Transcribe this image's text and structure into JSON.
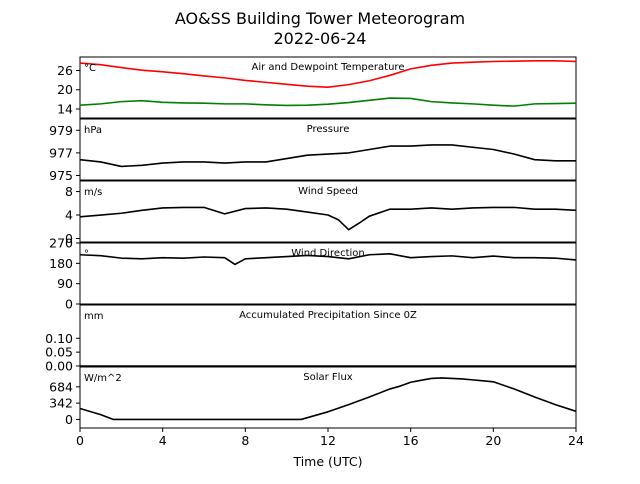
{
  "title": "AO&SS Building Tower Meteorogram",
  "subtitle": "2022-06-24",
  "chart_data": [
    {
      "type": "line",
      "title": "Air and Dewpoint Temperature",
      "ylabel": "°C",
      "yticks": [
        "14",
        "20",
        "26"
      ],
      "ytick_values": [
        14,
        20,
        26
      ],
      "ylim": [
        11.2,
        30.2
      ],
      "series": [
        {
          "color": "#ff0000",
          "x": [
            0,
            1,
            2,
            3,
            4,
            5,
            6,
            7,
            8,
            9,
            10,
            11,
            12,
            13,
            14,
            15,
            16,
            17,
            18,
            19,
            20,
            21,
            22,
            23,
            24
          ],
          "values": [
            28.3,
            27.8,
            26.9,
            26.1,
            25.6,
            25.0,
            24.3,
            23.7,
            22.9,
            22.3,
            21.7,
            21.1,
            20.8,
            21.6,
            22.8,
            24.5,
            26.5,
            27.6,
            28.3,
            28.6,
            28.8,
            28.9,
            29.0,
            29.0,
            28.8
          ]
        },
        {
          "color": "#008000",
          "x": [
            0,
            1,
            2,
            3,
            4,
            5,
            6,
            7,
            8,
            9,
            10,
            11,
            12,
            13,
            14,
            15,
            16,
            17,
            18,
            19,
            20,
            21,
            22,
            23,
            24
          ],
          "values": [
            15.2,
            15.6,
            16.3,
            16.6,
            16.1,
            15.9,
            15.8,
            15.6,
            15.6,
            15.3,
            15.1,
            15.2,
            15.5,
            16.0,
            16.7,
            17.4,
            17.3,
            16.3,
            15.9,
            15.6,
            15.2,
            14.9,
            15.6,
            15.7,
            15.8
          ]
        }
      ]
    },
    {
      "type": "line",
      "title": "Pressure",
      "ylabel": "hPa",
      "yticks": [
        "975",
        "977",
        "979"
      ],
      "ytick_values": [
        975,
        977,
        979
      ],
      "ylim": [
        974.6,
        980.0
      ],
      "series": [
        {
          "color": "#000000",
          "x": [
            0,
            1,
            2,
            3,
            4,
            5,
            6,
            7,
            8,
            9,
            10,
            11,
            12,
            13,
            14,
            15,
            16,
            17,
            18,
            19,
            20,
            21,
            22,
            23,
            24
          ],
          "values": [
            976.4,
            976.2,
            975.8,
            975.9,
            976.1,
            976.2,
            976.2,
            976.1,
            976.2,
            976.2,
            976.5,
            976.8,
            976.9,
            977.0,
            977.3,
            977.6,
            977.6,
            977.7,
            977.7,
            977.5,
            977.3,
            976.9,
            976.4,
            976.3,
            976.3
          ]
        }
      ]
    },
    {
      "type": "line",
      "title": "Wind Speed",
      "ylabel": "m/s",
      "yticks": [
        "0",
        "4",
        "8"
      ],
      "ytick_values": [
        0,
        4,
        8
      ],
      "ylim": [
        -0.6,
        9.8
      ],
      "series": [
        {
          "color": "#000000",
          "x": [
            0,
            1,
            2,
            3,
            4,
            5,
            6,
            7,
            8,
            9,
            10,
            11,
            12,
            12.5,
            13,
            13.5,
            14,
            15,
            16,
            17,
            18,
            19,
            20,
            21,
            22,
            23,
            24
          ],
          "values": [
            3.7,
            4.0,
            4.3,
            4.8,
            5.2,
            5.3,
            5.3,
            4.2,
            5.1,
            5.2,
            5.0,
            4.5,
            4.0,
            3.2,
            1.5,
            2.6,
            3.8,
            5.0,
            5.0,
            5.2,
            5.0,
            5.2,
            5.3,
            5.3,
            5.0,
            5.0,
            4.8
          ]
        }
      ]
    },
    {
      "type": "line",
      "title": "Wind Direction",
      "ylabel": "°",
      "yticks": [
        "0",
        "90",
        "180",
        "270"
      ],
      "ytick_values": [
        0,
        90,
        180,
        270
      ],
      "ylim": [
        0,
        270
      ],
      "series": [
        {
          "color": "#000000",
          "x": [
            0,
            1,
            2,
            3,
            4,
            5,
            6,
            7,
            7.5,
            8,
            9,
            10,
            11,
            12,
            13,
            14,
            15,
            16,
            17,
            18,
            19,
            20,
            21,
            22,
            23,
            24
          ],
          "values": [
            218,
            214,
            203,
            200,
            205,
            203,
            208,
            205,
            175,
            200,
            205,
            210,
            215,
            210,
            200,
            218,
            222,
            205,
            210,
            213,
            205,
            212,
            205,
            205,
            203,
            195
          ]
        }
      ]
    },
    {
      "type": "line",
      "title": "Accumulated Precipitation Since 0Z",
      "ylabel": "mm",
      "yticks": [
        "0.00",
        "0.05",
        "0.10"
      ],
      "ytick_values": [
        0,
        0.05,
        0.1
      ],
      "ylim": [
        0,
        0.22
      ],
      "series": [
        {
          "color": "#000000",
          "x": [
            0,
            24
          ],
          "values": [
            0,
            0
          ]
        }
      ]
    },
    {
      "type": "line",
      "title": "Solar Flux",
      "ylabel": "W/m^2",
      "yticks": [
        "0",
        "342",
        "684"
      ],
      "ytick_values": [
        0,
        342,
        684
      ],
      "ylim": [
        -180,
        1100
      ],
      "series": [
        {
          "color": "#000000",
          "x": [
            0,
            1,
            1.6,
            3,
            5,
            7,
            9,
            10.7,
            12,
            13,
            14,
            15,
            15.5,
            16,
            16.5,
            17,
            17.5,
            18,
            18.5,
            19,
            19.5,
            20,
            21,
            22,
            23,
            24
          ],
          "values": [
            230,
            100,
            0,
            0,
            0,
            0,
            0,
            0,
            160,
            310,
            470,
            640,
            700,
            780,
            820,
            860,
            870,
            860,
            850,
            830,
            810,
            790,
            640,
            470,
            310,
            170
          ]
        }
      ]
    }
  ],
  "xaxis": {
    "label": "Time (UTC)",
    "ticks": [
      "0",
      "4",
      "8",
      "12",
      "16",
      "20",
      "24"
    ],
    "tick_values": [
      0,
      4,
      8,
      12,
      16,
      20,
      24
    ],
    "xlim": [
      0,
      24
    ]
  }
}
